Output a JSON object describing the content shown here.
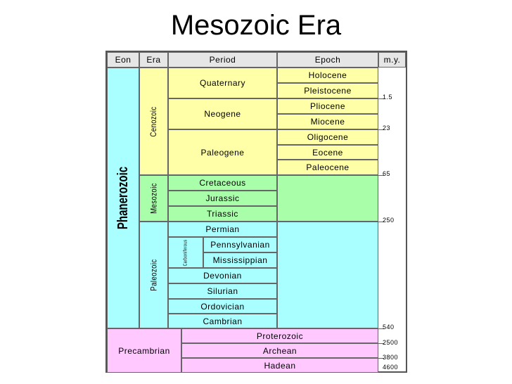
{
  "title": "Mesozoic Era",
  "headers": {
    "eon": "Eon",
    "era": "Era",
    "period": "Period",
    "epoch": "Epoch",
    "my": "m.y."
  },
  "eons": {
    "phanerozoic": "Phanerozoic",
    "precambrian": "Precambrian"
  },
  "eras": {
    "cenozoic": "Cenozoic",
    "mesozoic": "Mesozoic",
    "paleozoic": "Paleozoic"
  },
  "periods": {
    "quaternary": "Quaternary",
    "neogene": "Neogene",
    "paleogene": "Paleogene",
    "cretaceous": "Cretaceous",
    "jurassic": "Jurassic",
    "triassic": "Triassic",
    "permian": "Permian",
    "carboniferous": "Carboniferous",
    "pennsylvanian": "Pennsylvanian",
    "mississippian": "Mississippian",
    "devonian": "Devonian",
    "silurian": "Silurian",
    "ordovician": "Ordovician",
    "cambrian": "Cambrian",
    "proterozoic": "Proterozoic",
    "archean": "Archean",
    "hadean": "Hadean"
  },
  "epochs": {
    "holocene": "Holocene",
    "pleistocene": "Pleistocene",
    "pliocene": "Pliocene",
    "miocene": "Miocene",
    "oligocene": "Oligocene",
    "eocene": "Eocene",
    "paleocene": "Paleocene"
  },
  "my_labels": {
    "m1_5": "1.5",
    "m23": "23",
    "m65": "65",
    "m250": "250",
    "m540": "540",
    "m2500": "2500",
    "m3800": "3800",
    "m4600": "4600"
  },
  "colors": {
    "cenozoic": "#ffffa8",
    "mesozoic": "#a9ffa9",
    "paleozoic": "#a9ffff",
    "precambrian": "#ffc8ff",
    "header": "#e6e6e6"
  }
}
